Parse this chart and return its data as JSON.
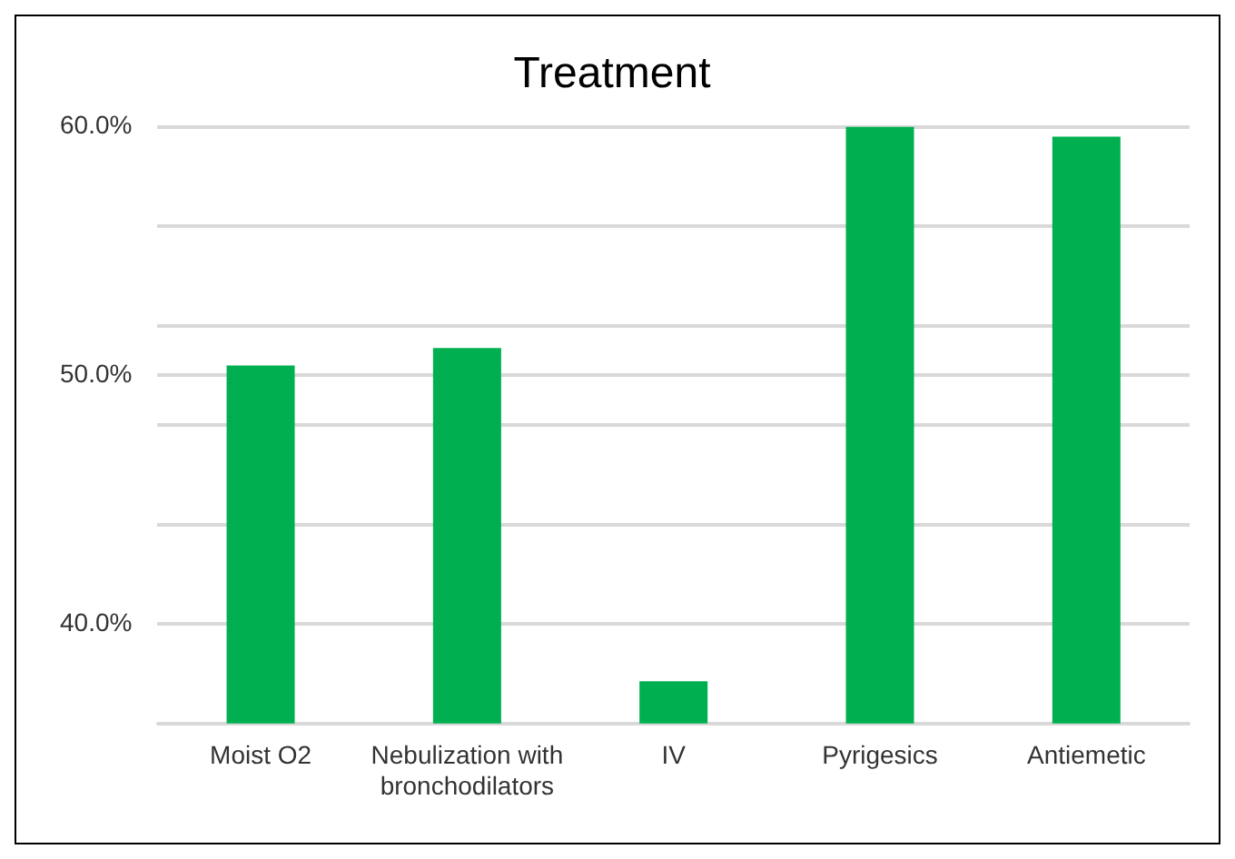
{
  "chart_data": {
    "type": "bar",
    "title": "Treatment",
    "categories": [
      "Moist O2",
      "Nebulization with bronchodilators",
      "IV",
      "Pyrigesics",
      "Antiemetic"
    ],
    "values": [
      50.4,
      51.1,
      37.7,
      60.0,
      59.6
    ],
    "color": "#00b050",
    "ylim": [
      36,
      60
    ],
    "yticks": [
      {
        "value": 36,
        "label": null
      },
      {
        "value": 40,
        "label": "40.0%"
      },
      {
        "value": 44,
        "label": null
      },
      {
        "value": 48,
        "label": null
      },
      {
        "value": 50,
        "label": "50.0%"
      },
      {
        "value": 52,
        "label": null
      },
      {
        "value": 56,
        "label": null
      },
      {
        "value": 60,
        "label": "60.0%"
      }
    ],
    "grid": "y"
  }
}
